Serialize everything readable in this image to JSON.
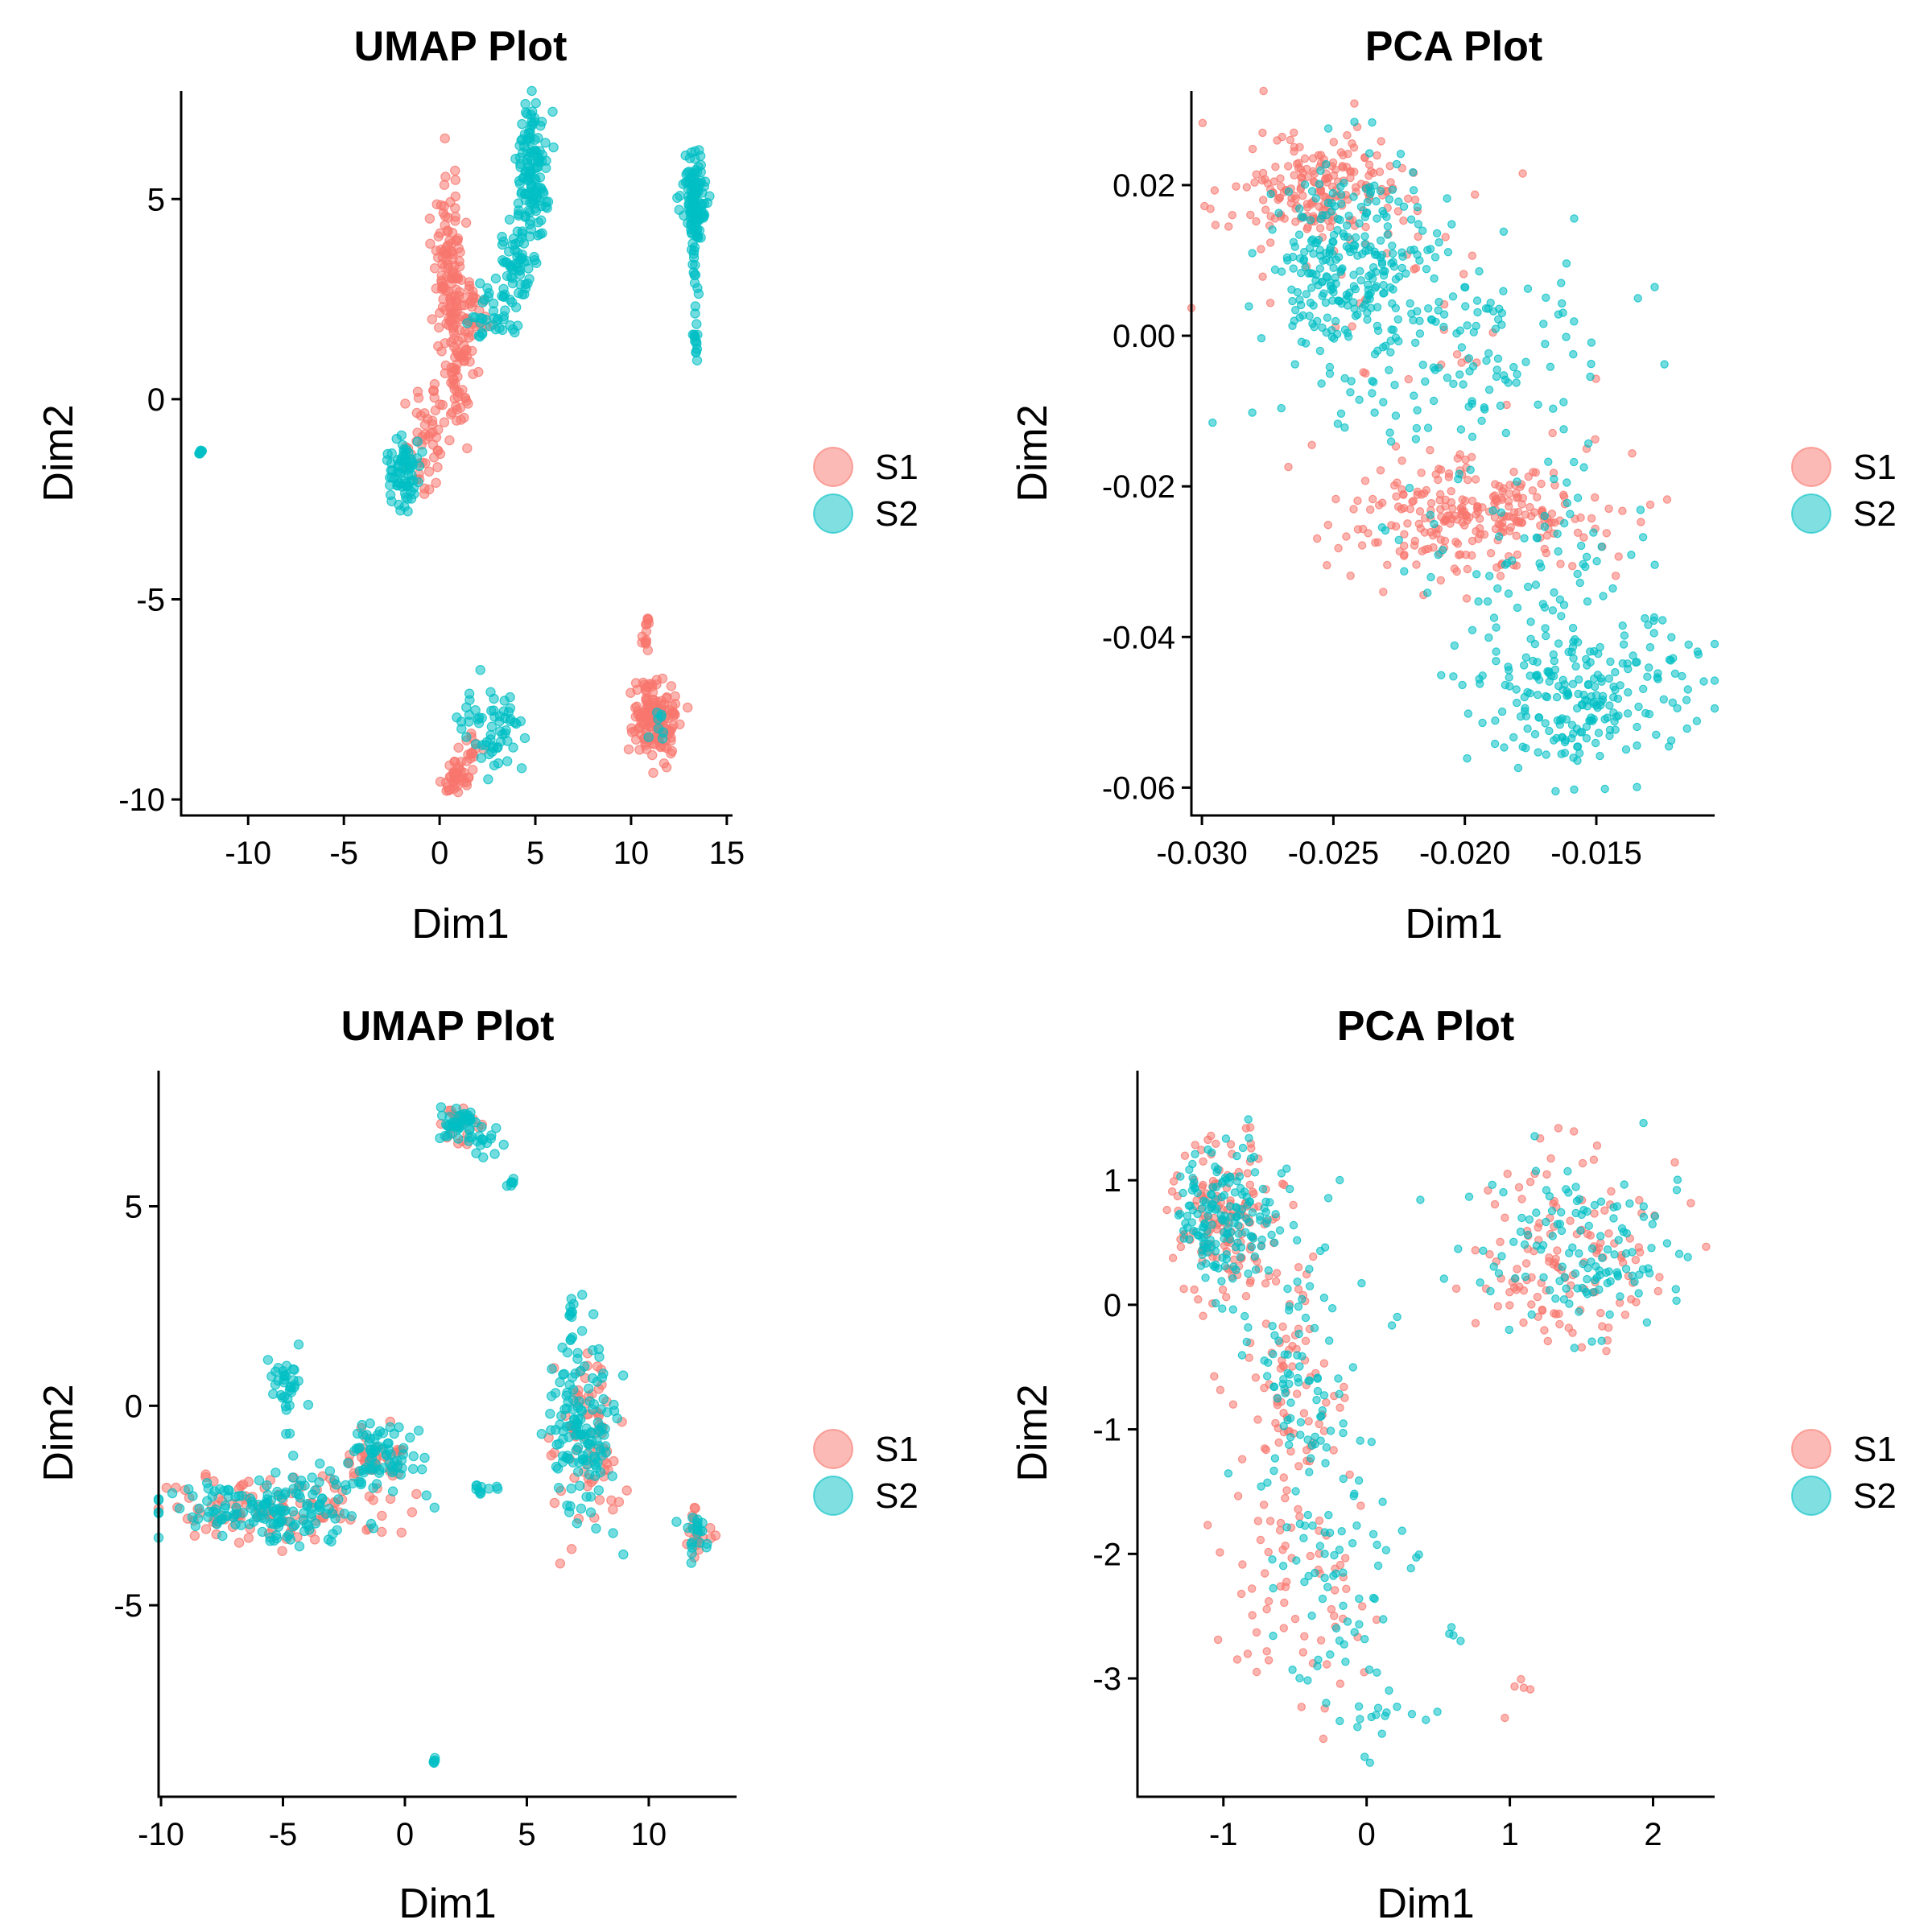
{
  "colors": {
    "S1": "#F8766D",
    "S2": "#00BFC4"
  },
  "legend": {
    "items": [
      {
        "label": "S1",
        "color": "#F8766D"
      },
      {
        "label": "S2",
        "color": "#00BFC4"
      }
    ],
    "placement": "right"
  },
  "chart_data": [
    {
      "type": "scatter",
      "title": "UMAP Plot",
      "xlabel": "Dim1",
      "ylabel": "Dim2",
      "xlim": [
        -13.5,
        15.3
      ],
      "ylim": [
        -10.4,
        7.7
      ],
      "xticks": [
        -10,
        -5,
        0,
        5,
        10,
        15
      ],
      "xtick_labels": [
        "-10",
        "-5",
        "0",
        "5",
        "10",
        "15"
      ],
      "yticks": [
        -10,
        -5,
        0,
        5
      ],
      "ytick_labels": [
        "-10",
        "-5",
        "0",
        "5"
      ],
      "grid": false,
      "series": [
        {
          "name": "S1",
          "clusters": [
            {
              "cx": 0.5,
              "cy": 3.2,
              "sx": 0.4,
              "sy": 1.1,
              "n": 120
            },
            {
              "cx": 1.1,
              "cy": 1.0,
              "sx": 0.45,
              "sy": 1.2,
              "n": 70
            },
            {
              "cx": -0.6,
              "cy": -0.9,
              "sx": 0.5,
              "sy": 0.8,
              "n": 50
            },
            {
              "cx": 1.8,
              "cy": 2.3,
              "sx": 0.5,
              "sy": 0.3,
              "n": 20
            },
            {
              "cx": 11.2,
              "cy": -8.0,
              "sx": 0.55,
              "sy": 0.45,
              "n": 160
            },
            {
              "cx": 10.8,
              "cy": -5.9,
              "sx": 0.12,
              "sy": 0.3,
              "n": 14
            },
            {
              "cx": 0.9,
              "cy": -9.4,
              "sx": 0.35,
              "sy": 0.18,
              "n": 40
            },
            {
              "cx": 1.7,
              "cy": -8.8,
              "sx": 0.3,
              "sy": 0.25,
              "n": 15
            }
          ]
        },
        {
          "name": "S2",
          "clusters": [
            {
              "cx": 4.8,
              "cy": 5.6,
              "sx": 0.45,
              "sy": 0.9,
              "n": 130
            },
            {
              "cx": 3.9,
              "cy": 3.2,
              "sx": 0.5,
              "sy": 0.6,
              "n": 60
            },
            {
              "cx": 2.6,
              "cy": 2.1,
              "sx": 0.5,
              "sy": 0.35,
              "n": 30
            },
            {
              "cx": 13.3,
              "cy": 5.0,
              "sx": 0.3,
              "sy": 0.55,
              "n": 120
            },
            {
              "cx": 13.3,
              "cy": 3.0,
              "sx": 0.08,
              "sy": 0.3,
              "n": 10
            },
            {
              "cx": 13.4,
              "cy": 1.5,
              "sx": 0.07,
              "sy": 0.3,
              "n": 15
            },
            {
              "cx": -1.9,
              "cy": -1.8,
              "sx": 0.45,
              "sy": 0.45,
              "n": 70
            },
            {
              "cx": -12.5,
              "cy": -1.3,
              "sx": 0.05,
              "sy": 0.05,
              "n": 8
            },
            {
              "cx": 2.8,
              "cy": -8.2,
              "sx": 0.7,
              "sy": 0.5,
              "n": 60
            },
            {
              "cx": 11.6,
              "cy": -8.2,
              "sx": 0.3,
              "sy": 0.3,
              "n": 8
            }
          ]
        }
      ]
    },
    {
      "type": "scatter",
      "title": "PCA Plot",
      "xlabel": "Dim1",
      "ylabel": "Dim2",
      "xlim": [
        -0.0304,
        -0.0105
      ],
      "ylim": [
        -0.0637,
        0.0325
      ],
      "xticks": [
        -0.03,
        -0.025,
        -0.02,
        -0.015
      ],
      "xtick_labels": [
        "-0.030",
        "-0.025",
        "-0.020",
        "-0.015"
      ],
      "yticks": [
        0.02,
        0.0,
        -0.02,
        -0.04,
        -0.06
      ],
      "ytick_labels": [
        "0.02",
        "0.00",
        "-0.02",
        "-0.04",
        "-0.06"
      ],
      "grid": false,
      "series": [
        {
          "name": "S1",
          "clusters": [
            {
              "cx": -0.0258,
              "cy": 0.019,
              "sx": 0.0015,
              "sy": 0.0035,
              "n": 200
            },
            {
              "cx": -0.0195,
              "cy": -0.024,
              "sx": 0.0025,
              "sy": 0.004,
              "n": 260
            },
            {
              "cx": -0.0225,
              "cy": 0.003,
              "sx": 0.0035,
              "sy": 0.012,
              "n": 45
            }
          ]
        },
        {
          "name": "S2",
          "clusters": [
            {
              "cx": -0.0245,
              "cy": 0.01,
              "sx": 0.0015,
              "sy": 0.006,
              "n": 260
            },
            {
              "cx": -0.0205,
              "cy": -0.002,
              "sx": 0.0028,
              "sy": 0.008,
              "n": 150
            },
            {
              "cx": -0.0155,
              "cy": -0.047,
              "sx": 0.0022,
              "sy": 0.005,
              "n": 230
            },
            {
              "cx": -0.0175,
              "cy": -0.03,
              "sx": 0.0025,
              "sy": 0.006,
              "n": 70
            }
          ]
        }
      ]
    },
    {
      "type": "scatter",
      "title": "UMAP Plot",
      "xlabel": "Dim1",
      "ylabel": "Dim2",
      "xlim": [
        -10.1,
        13.6
      ],
      "ylim": [
        -9.8,
        8.4
      ],
      "xticks": [
        -10,
        -5,
        0,
        5,
        10
      ],
      "xtick_labels": [
        "-10",
        "-5",
        "0",
        "5",
        "10"
      ],
      "yticks": [
        -5,
        0,
        5
      ],
      "ytick_labels": [
        "-5",
        "0",
        "5"
      ],
      "grid": false,
      "series": [
        {
          "name": "S1",
          "clusters": [
            {
              "cx": -5.5,
              "cy": -2.6,
              "sx": 2.4,
              "sy": 0.45,
              "n": 110
            },
            {
              "cx": -1.2,
              "cy": -1.4,
              "sx": 0.8,
              "sy": 0.4,
              "n": 40
            },
            {
              "cx": 7.5,
              "cy": -0.9,
              "sx": 0.7,
              "sy": 1.2,
              "n": 70
            },
            {
              "cx": 2.3,
              "cy": 7.1,
              "sx": 0.4,
              "sy": 0.2,
              "n": 30
            },
            {
              "cx": 12.0,
              "cy": -3.2,
              "sx": 0.3,
              "sy": 0.35,
              "n": 20
            }
          ]
        },
        {
          "name": "S2",
          "clusters": [
            {
              "cx": -5.5,
              "cy": -2.6,
              "sx": 2.4,
              "sy": 0.45,
              "n": 160
            },
            {
              "cx": -1.0,
              "cy": -1.3,
              "sx": 0.8,
              "sy": 0.4,
              "n": 70
            },
            {
              "cx": -4.8,
              "cy": 0.3,
              "sx": 0.3,
              "sy": 0.5,
              "n": 35
            },
            {
              "cx": 7.4,
              "cy": -0.8,
              "sx": 0.7,
              "sy": 1.2,
              "n": 140
            },
            {
              "cx": 6.8,
              "cy": 2.4,
              "sx": 0.07,
              "sy": 0.15,
              "n": 8
            },
            {
              "cx": 2.3,
              "cy": 7.1,
              "sx": 0.4,
              "sy": 0.25,
              "n": 45
            },
            {
              "cx": 3.3,
              "cy": 6.5,
              "sx": 0.3,
              "sy": 0.2,
              "n": 12
            },
            {
              "cx": 4.4,
              "cy": 5.6,
              "sx": 0.07,
              "sy": 0.05,
              "n": 6
            },
            {
              "cx": 3.2,
              "cy": -2.1,
              "sx": 0.4,
              "sy": 0.08,
              "n": 10
            },
            {
              "cx": 12.0,
              "cy": -3.2,
              "sx": 0.3,
              "sy": 0.35,
              "n": 20
            },
            {
              "cx": 1.2,
              "cy": -8.9,
              "sx": 0.04,
              "sy": 0.04,
              "n": 5
            }
          ]
        }
      ]
    },
    {
      "type": "scatter",
      "title": "PCA Plot",
      "xlabel": "Dim1",
      "ylabel": "Dim2",
      "xlim": [
        -1.6,
        2.43
      ],
      "ylim": [
        -3.95,
        1.88
      ],
      "xticks": [
        -1,
        0,
        1,
        2
      ],
      "xtick_labels": [
        "-1",
        "0",
        "1",
        "2"
      ],
      "yticks": [
        1,
        0,
        -1,
        -2,
        -3
      ],
      "ytick_labels": [
        "1",
        "0",
        "-1",
        "-2",
        "-3"
      ],
      "grid": false,
      "series": [
        {
          "name": "S1",
          "clusters": [
            {
              "cx": -1.0,
              "cy": 0.7,
              "sx": 0.2,
              "sy": 0.3,
              "n": 150
            },
            {
              "cx": -0.5,
              "cy": -0.6,
              "sx": 0.2,
              "sy": 0.7,
              "n": 90
            },
            {
              "cx": -0.4,
              "cy": -2.2,
              "sx": 0.22,
              "sy": 0.5,
              "n": 60
            },
            {
              "cx": 1.4,
              "cy": 0.4,
              "sx": 0.35,
              "sy": 0.4,
              "n": 130
            },
            {
              "cx": 1.15,
              "cy": -3.1,
              "sx": 0.08,
              "sy": 0.1,
              "n": 5
            }
          ]
        },
        {
          "name": "S2",
          "clusters": [
            {
              "cx": -1.0,
              "cy": 0.7,
              "sx": 0.18,
              "sy": 0.28,
              "n": 170
            },
            {
              "cx": -0.45,
              "cy": -0.5,
              "sx": 0.2,
              "sy": 0.7,
              "n": 100
            },
            {
              "cx": -0.2,
              "cy": -2.4,
              "sx": 0.22,
              "sy": 0.5,
              "n": 60
            },
            {
              "cx": 0.1,
              "cy": -3.3,
              "sx": 0.15,
              "sy": 0.15,
              "n": 15
            },
            {
              "cx": 1.5,
              "cy": 0.4,
              "sx": 0.35,
              "sy": 0.35,
              "n": 130
            },
            {
              "cx": 0.6,
              "cy": -2.6,
              "sx": 0.05,
              "sy": 0.1,
              "n": 4
            }
          ]
        }
      ]
    }
  ]
}
